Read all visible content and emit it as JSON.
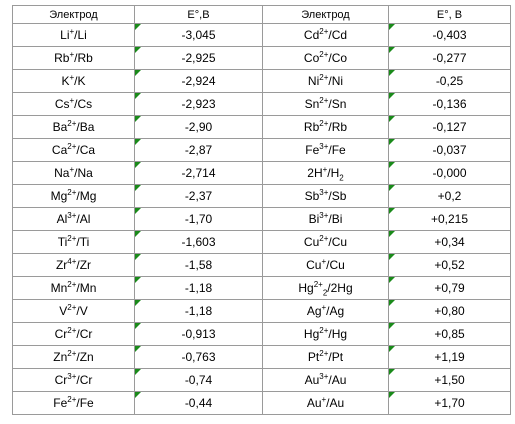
{
  "table": {
    "header": [
      "Электрод",
      "E°,В",
      "Электрод",
      "E°, В"
    ],
    "rows": [
      [
        [
          "Li",
          {
            "text": "+",
            "script": "sup"
          },
          "/Li"
        ],
        "-3,045",
        [
          "Cd",
          {
            "text": "2+",
            "script": "sup"
          },
          "/Cd"
        ],
        "-0,403"
      ],
      [
        [
          "Rb",
          {
            "text": "+",
            "script": "sup"
          },
          "/Rb"
        ],
        "-2,925",
        [
          "Co",
          {
            "text": "2+",
            "script": "sup"
          },
          "/Co"
        ],
        "-0,277"
      ],
      [
        [
          "K",
          {
            "text": "+",
            "script": "sup"
          },
          "/K"
        ],
        "-2,924",
        [
          "Ni",
          {
            "text": "2+",
            "script": "sup"
          },
          "/Ni"
        ],
        "-0,25"
      ],
      [
        [
          "Cs",
          {
            "text": "+",
            "script": "sup"
          },
          "/Cs"
        ],
        "-2,923",
        [
          "Sn",
          {
            "text": "2+",
            "script": "sup"
          },
          "/Sn"
        ],
        "-0,136"
      ],
      [
        [
          "Ba",
          {
            "text": "2+",
            "script": "sup"
          },
          "/Ba"
        ],
        "-2,90",
        [
          "Rb",
          {
            "text": "2+",
            "script": "sup"
          },
          "/Rb"
        ],
        "-0,127"
      ],
      [
        [
          "Ca",
          {
            "text": "2+",
            "script": "sup"
          },
          "/Ca"
        ],
        "-2,87",
        [
          "Fe",
          {
            "text": "3+",
            "script": "sup"
          },
          "/Fe"
        ],
        "-0,037"
      ],
      [
        [
          "Na",
          {
            "text": "+",
            "script": "sup"
          },
          "/Na"
        ],
        "-2,714",
        [
          "2H",
          {
            "text": "+",
            "script": "sup"
          },
          "/H",
          {
            "text": "2",
            "script": "sub"
          }
        ],
        "-0,000"
      ],
      [
        [
          "Mg",
          {
            "text": "2+",
            "script": "sup"
          },
          "/Mg"
        ],
        "-2,37",
        [
          "Sb",
          {
            "text": "3+",
            "script": "sup"
          },
          "/Sb"
        ],
        "+0,2"
      ],
      [
        [
          "Al",
          {
            "text": "3+",
            "script": "sup"
          },
          "/Al"
        ],
        "-1,70",
        [
          "Bi",
          {
            "text": "3+",
            "script": "sup"
          },
          "/Bi"
        ],
        "+0,215"
      ],
      [
        [
          "Ti",
          {
            "text": "2+",
            "script": "sup"
          },
          "/Ti"
        ],
        "-1,603",
        [
          "Cu",
          {
            "text": "2+",
            "script": "sup"
          },
          "/Cu"
        ],
        "+0,34"
      ],
      [
        [
          "Zr",
          {
            "text": "4+",
            "script": "sup"
          },
          "/Zr"
        ],
        "-1,58",
        [
          "Cu",
          {
            "text": "+",
            "script": "sup"
          },
          "/Cu"
        ],
        "+0,52"
      ],
      [
        [
          "Mn",
          {
            "text": "2+",
            "script": "sup"
          },
          "/Mn"
        ],
        "-1,18",
        [
          "Hg",
          {
            "text": "2+",
            "script": "sup"
          },
          {
            "text": "2",
            "script": "sub"
          },
          "/2Hg"
        ],
        "+0,79"
      ],
      [
        [
          "V",
          {
            "text": "2+",
            "script": "sup"
          },
          "/V"
        ],
        "-1,18",
        [
          "Ag",
          {
            "text": "+",
            "script": "sup"
          },
          "/Ag"
        ],
        "+0,80"
      ],
      [
        [
          "Cr",
          {
            "text": "2+",
            "script": "sup"
          },
          "/Cr"
        ],
        "-0,913",
        [
          "Hg",
          {
            "text": "2+",
            "script": "sup"
          },
          "/Hg"
        ],
        "+0,85"
      ],
      [
        [
          "Zn",
          {
            "text": "2+",
            "script": "sup"
          },
          "/Zn"
        ],
        "-0,763",
        [
          "Pt",
          {
            "text": "2+",
            "script": "sup"
          },
          "/Pt"
        ],
        "+1,19"
      ],
      [
        [
          "Cr",
          {
            "text": "3+",
            "script": "sup"
          },
          "/Cr"
        ],
        "-0,74",
        [
          "Au",
          {
            "text": "3+",
            "script": "sup"
          },
          "/Au"
        ],
        "+1,50"
      ],
      [
        [
          "Fe",
          {
            "text": "2+",
            "script": "sup"
          },
          "/Fe"
        ],
        "-0,44",
        [
          "Au",
          {
            "text": "+",
            "script": "sup"
          },
          "/Au"
        ],
        "+1,70"
      ]
    ]
  }
}
